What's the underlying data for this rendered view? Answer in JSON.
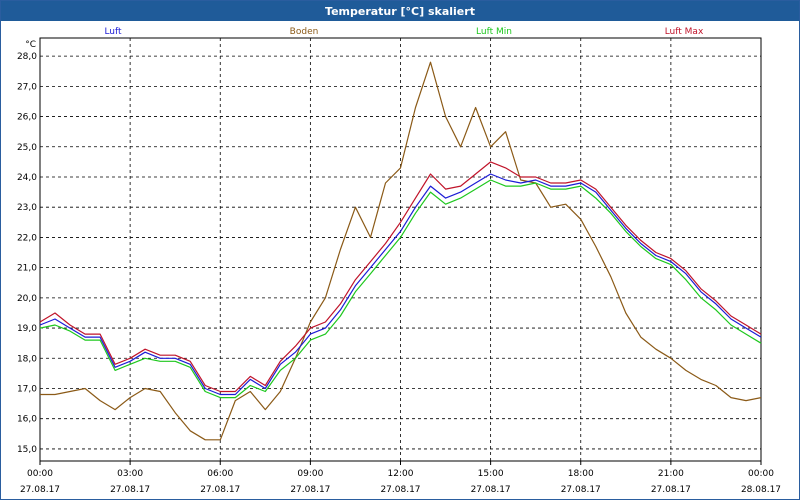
{
  "window": {
    "title": "Temperatur [°C] skaliert"
  },
  "chart_data": {
    "type": "line",
    "title": "Temperatur [°C] skaliert",
    "ylabel": "°C",
    "xlabel": "",
    "ylim": [
      14.6,
      28.6
    ],
    "xlim": [
      0,
      24
    ],
    "grid": true,
    "legend_position": "top",
    "yticks": [
      15.0,
      16.0,
      17.0,
      18.0,
      19.0,
      20.0,
      21.0,
      22.0,
      23.0,
      24.0,
      25.0,
      26.0,
      27.0,
      28.0
    ],
    "ytick_labels": [
      "15,0",
      "16,0",
      "17,0",
      "18,0",
      "19,0",
      "20,0",
      "21,0",
      "22,0",
      "23,0",
      "24,0",
      "25,0",
      "26,0",
      "27,0",
      "28,0"
    ],
    "xticks": [
      {
        "x": 0,
        "time": "00:00",
        "date": "27.08.17"
      },
      {
        "x": 3,
        "time": "03:00",
        "date": "27.08.17"
      },
      {
        "x": 6,
        "time": "06:00",
        "date": "27.08.17"
      },
      {
        "x": 9,
        "time": "09:00",
        "date": "27.08.17"
      },
      {
        "x": 12,
        "time": "12:00",
        "date": "27.08.17"
      },
      {
        "x": 15,
        "time": "15:00",
        "date": "27.08.17"
      },
      {
        "x": 18,
        "time": "18:00",
        "date": "27.08.17"
      },
      {
        "x": 21,
        "time": "21:00",
        "date": "27.08.17"
      },
      {
        "x": 24,
        "time": "00:00",
        "date": "28.08.17"
      }
    ],
    "x": [
      0,
      0.5,
      1,
      1.5,
      2,
      2.5,
      3,
      3.5,
      4,
      4.5,
      5,
      5.5,
      6,
      6.5,
      7,
      7.5,
      8,
      8.5,
      9,
      9.5,
      10,
      10.5,
      11,
      11.5,
      12,
      12.5,
      13,
      13.5,
      14,
      14.5,
      15,
      15.5,
      16,
      16.5,
      17,
      17.5,
      18,
      18.5,
      19,
      19.5,
      20,
      20.5,
      21,
      21.5,
      22,
      22.5,
      23,
      23.5,
      24
    ],
    "series": [
      {
        "name": "Luft",
        "color": "#1c1cd6",
        "values": [
          19.1,
          19.3,
          19.0,
          18.7,
          18.7,
          17.7,
          17.9,
          18.2,
          18.0,
          18.0,
          17.8,
          17.0,
          16.8,
          16.8,
          17.3,
          17.0,
          17.8,
          18.2,
          18.8,
          19.0,
          19.6,
          20.4,
          21.0,
          21.6,
          22.2,
          23.0,
          23.7,
          23.3,
          23.5,
          23.8,
          24.1,
          23.9,
          23.8,
          23.9,
          23.7,
          23.7,
          23.8,
          23.5,
          22.9,
          22.3,
          21.8,
          21.4,
          21.2,
          20.8,
          20.2,
          19.8,
          19.3,
          19.0,
          18.7
        ]
      },
      {
        "name": "Boden",
        "color": "#8b5a17",
        "values": [
          16.8,
          16.8,
          16.9,
          17.0,
          16.6,
          16.3,
          16.7,
          17.0,
          16.9,
          16.2,
          15.6,
          15.3,
          15.3,
          16.6,
          16.9,
          16.3,
          16.9,
          18.0,
          19.2,
          20.0,
          21.6,
          23.0,
          22.0,
          23.8,
          24.3,
          26.3,
          27.8,
          26.0,
          25.0,
          26.3,
          25.0,
          25.5,
          23.9,
          23.8,
          23.0,
          23.1,
          22.6,
          21.7,
          20.7,
          19.5,
          18.7,
          18.3,
          18.0,
          17.6,
          17.3,
          17.1,
          16.7,
          16.6,
          16.7
        ]
      },
      {
        "name": "Luft Min",
        "color": "#1ec81e",
        "values": [
          19.0,
          19.1,
          18.9,
          18.6,
          18.6,
          17.6,
          17.8,
          18.0,
          17.9,
          17.9,
          17.7,
          16.9,
          16.7,
          16.7,
          17.1,
          16.9,
          17.6,
          18.0,
          18.6,
          18.8,
          19.4,
          20.2,
          20.8,
          21.4,
          22.0,
          22.8,
          23.5,
          23.1,
          23.3,
          23.6,
          23.9,
          23.7,
          23.7,
          23.8,
          23.6,
          23.6,
          23.7,
          23.3,
          22.8,
          22.2,
          21.7,
          21.3,
          21.1,
          20.6,
          20.0,
          19.6,
          19.1,
          18.8,
          18.5
        ]
      },
      {
        "name": "Luft Max",
        "color": "#c0142a",
        "values": [
          19.2,
          19.5,
          19.1,
          18.8,
          18.8,
          17.8,
          18.0,
          18.3,
          18.1,
          18.1,
          17.9,
          17.1,
          16.9,
          16.9,
          17.4,
          17.1,
          17.9,
          18.4,
          19.0,
          19.2,
          19.8,
          20.6,
          21.2,
          21.8,
          22.5,
          23.3,
          24.1,
          23.6,
          23.7,
          24.1,
          24.5,
          24.3,
          24.0,
          24.0,
          23.8,
          23.8,
          23.9,
          23.6,
          23.0,
          22.4,
          21.9,
          21.5,
          21.3,
          20.9,
          20.3,
          19.9,
          19.4,
          19.1,
          18.8
        ]
      }
    ]
  }
}
